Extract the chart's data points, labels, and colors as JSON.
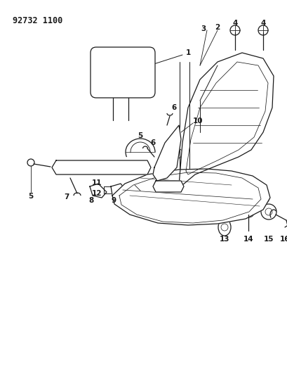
{
  "title": "92732 1100",
  "background_color": "#ffffff",
  "line_color": "#1a1a1a",
  "fig_width": 4.1,
  "fig_height": 5.33,
  "dpi": 100
}
